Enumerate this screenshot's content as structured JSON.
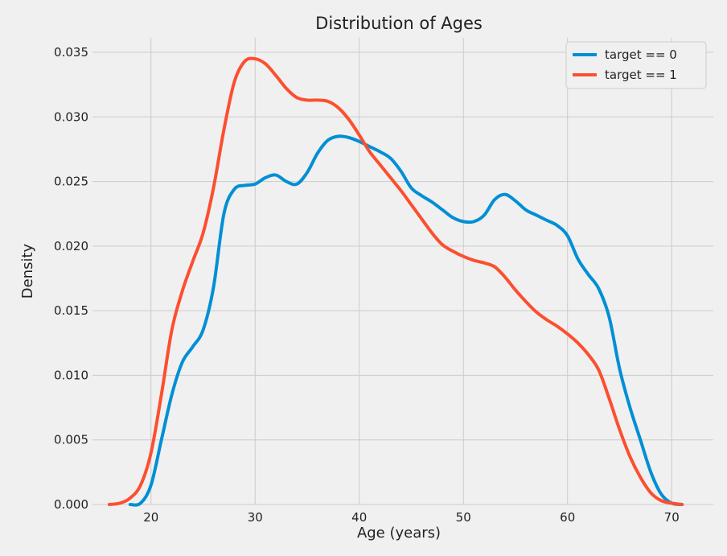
{
  "chart_data": {
    "type": "line",
    "title": "Distribution of Ages",
    "xlabel": "Age (years)",
    "ylabel": "Density",
    "xlim": [
      15,
      74
    ],
    "ylim": [
      0,
      0.0355
    ],
    "xticks": [
      20,
      30,
      40,
      50,
      60,
      70
    ],
    "yticks": [
      0.0,
      0.005,
      0.01,
      0.015,
      0.02,
      0.025,
      0.03,
      0.035
    ],
    "ytick_labels": [
      "0.000",
      "0.005",
      "0.010",
      "0.015",
      "0.020",
      "0.025",
      "0.030",
      "0.035"
    ],
    "grid": true,
    "legend_position": "top-right",
    "series": [
      {
        "name": "target == 0",
        "color": "#008fd5",
        "points": [
          [
            18,
            0
          ],
          [
            19,
            0.0001
          ],
          [
            20,
            0.0015
          ],
          [
            21,
            0.005
          ],
          [
            22,
            0.0085
          ],
          [
            23,
            0.011
          ],
          [
            24,
            0.0122
          ],
          [
            25,
            0.0135
          ],
          [
            26,
            0.0168
          ],
          [
            27,
            0.0225
          ],
          [
            28,
            0.0244
          ],
          [
            29,
            0.0247
          ],
          [
            30,
            0.0248
          ],
          [
            31,
            0.0253
          ],
          [
            32,
            0.0255
          ],
          [
            33,
            0.025
          ],
          [
            34,
            0.0248
          ],
          [
            35,
            0.0257
          ],
          [
            36,
            0.0272
          ],
          [
            37,
            0.0282
          ],
          [
            38,
            0.0285
          ],
          [
            39,
            0.0284
          ],
          [
            40,
            0.0281
          ],
          [
            41,
            0.0277
          ],
          [
            42,
            0.0273
          ],
          [
            43,
            0.0268
          ],
          [
            44,
            0.0258
          ],
          [
            45,
            0.0245
          ],
          [
            46,
            0.0239
          ],
          [
            47,
            0.0234
          ],
          [
            48,
            0.0228
          ],
          [
            49,
            0.0222
          ],
          [
            50,
            0.0219
          ],
          [
            51,
            0.0219
          ],
          [
            52,
            0.0224
          ],
          [
            53,
            0.0236
          ],
          [
            54,
            0.024
          ],
          [
            55,
            0.0235
          ],
          [
            56,
            0.0228
          ],
          [
            57,
            0.0224
          ],
          [
            58,
            0.022
          ],
          [
            59,
            0.0216
          ],
          [
            60,
            0.0208
          ],
          [
            61,
            0.019
          ],
          [
            62,
            0.0178
          ],
          [
            63,
            0.0167
          ],
          [
            64,
            0.0145
          ],
          [
            65,
            0.0105
          ],
          [
            66,
            0.0075
          ],
          [
            67,
            0.005
          ],
          [
            68,
            0.0025
          ],
          [
            69,
            0.0008
          ],
          [
            70,
            0.0001
          ],
          [
            71,
            0
          ]
        ]
      },
      {
        "name": "target == 1",
        "color": "#fc4f30",
        "points": [
          [
            16,
            0
          ],
          [
            17,
            0.0001
          ],
          [
            18,
            0.0005
          ],
          [
            19,
            0.0015
          ],
          [
            20,
            0.004
          ],
          [
            21,
            0.0085
          ],
          [
            22,
            0.0135
          ],
          [
            23,
            0.0165
          ],
          [
            24,
            0.0188
          ],
          [
            25,
            0.021
          ],
          [
            26,
            0.0245
          ],
          [
            27,
            0.029
          ],
          [
            28,
            0.0327
          ],
          [
            29,
            0.0343
          ],
          [
            30,
            0.0345
          ],
          [
            31,
            0.0341
          ],
          [
            32,
            0.0332
          ],
          [
            33,
            0.0322
          ],
          [
            34,
            0.0315
          ],
          [
            35,
            0.0313
          ],
          [
            36,
            0.0313
          ],
          [
            37,
            0.0312
          ],
          [
            38,
            0.0307
          ],
          [
            39,
            0.0298
          ],
          [
            40,
            0.0286
          ],
          [
            41,
            0.0273
          ],
          [
            42,
            0.0263
          ],
          [
            43,
            0.0253
          ],
          [
            44,
            0.0243
          ],
          [
            45,
            0.0232
          ],
          [
            46,
            0.0221
          ],
          [
            47,
            0.021
          ],
          [
            48,
            0.0201
          ],
          [
            49,
            0.0196
          ],
          [
            50,
            0.0192
          ],
          [
            51,
            0.0189
          ],
          [
            52,
            0.0187
          ],
          [
            53,
            0.0184
          ],
          [
            54,
            0.0176
          ],
          [
            55,
            0.0166
          ],
          [
            56,
            0.0157
          ],
          [
            57,
            0.0149
          ],
          [
            58,
            0.0143
          ],
          [
            59,
            0.0138
          ],
          [
            60,
            0.0132
          ],
          [
            61,
            0.0125
          ],
          [
            62,
            0.0116
          ],
          [
            63,
            0.0104
          ],
          [
            64,
            0.0082
          ],
          [
            65,
            0.0058
          ],
          [
            66,
            0.0037
          ],
          [
            67,
            0.0021
          ],
          [
            68,
            0.0009
          ],
          [
            69,
            0.0003
          ],
          [
            70,
            0.0001
          ],
          [
            71,
            0
          ]
        ]
      }
    ]
  }
}
